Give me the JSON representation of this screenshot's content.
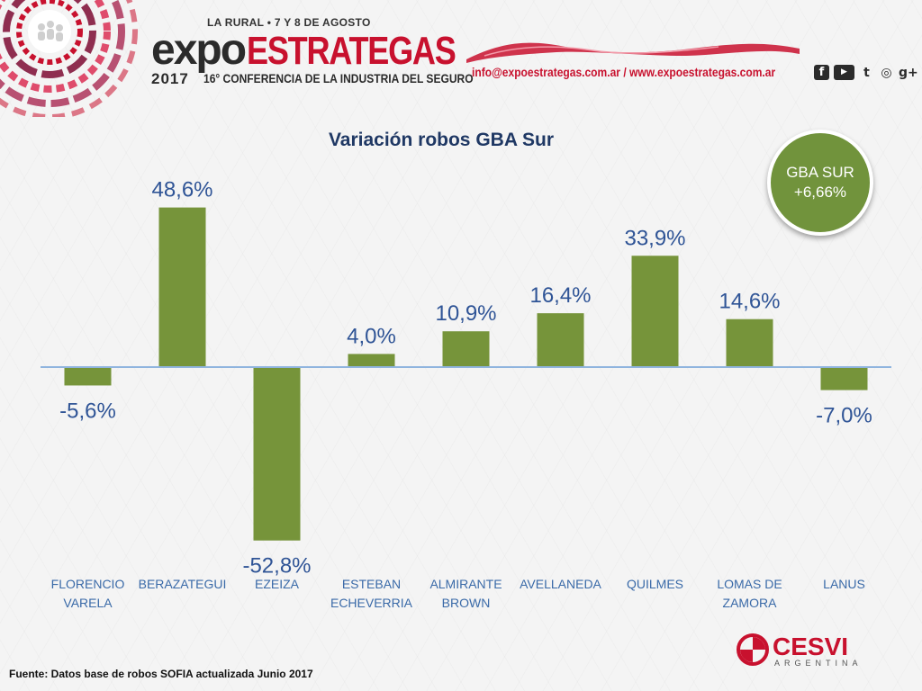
{
  "header": {
    "venue": "LA RURAL • 7 Y 8 DE AGOSTO",
    "brand_part1": "expo",
    "brand_part2": "ESTRATEGAS",
    "year": "2017",
    "conference": "16° CONFERENCIA DE LA INDUSTRIA DEL SEGURO",
    "contact": "info@expoestrategas.com.ar / www.expoestrategas.com.ar",
    "social_icons": [
      "facebook-icon",
      "youtube-icon",
      "twitter-icon",
      "instagram-icon",
      "google-plus-icon"
    ],
    "social_glyphs": [
      "f",
      "▶",
      "t",
      "◎",
      "g+"
    ]
  },
  "badge": {
    "line1": "GBA SUR",
    "line2": "+6,66%"
  },
  "source": "Fuente: Datos base de robos SOFIA actualizada Junio 2017",
  "footer_logo": {
    "name": "CESVI",
    "sub": "ARGENTINA"
  },
  "colors": {
    "bar": "#76943a",
    "axis": "#8fb4de",
    "title": "#1f3864",
    "value_label": "#2f5496",
    "category_label": "#3a6aa8",
    "brand_red": "#c8112e",
    "badge": "#71933c"
  },
  "chart_data": {
    "type": "bar",
    "title": "Variación robos GBA Sur",
    "categories": [
      [
        "FLORENCIO",
        "VARELA"
      ],
      [
        "BERAZATEGUI"
      ],
      [
        "EZEIZA"
      ],
      [
        "ESTEBAN",
        "ECHEVERRIA"
      ],
      [
        "ALMIRANTE",
        "BROWN"
      ],
      [
        "AVELLANEDA"
      ],
      [
        "QUILMES"
      ],
      [
        "LOMAS DE",
        "ZAMORA"
      ],
      [
        "LANUS"
      ]
    ],
    "values": [
      -5.6,
      48.6,
      -52.8,
      4.0,
      10.9,
      16.4,
      33.9,
      14.6,
      -7.0
    ],
    "data_labels": [
      "-5,6%",
      "48,6%",
      "-52,8%",
      "4,0%",
      "10,9%",
      "16,4%",
      "33,9%",
      "14,6%",
      "-7,0%"
    ],
    "ylim": [
      -55,
      50
    ],
    "grid": false,
    "legend": "none",
    "xlabel": "",
    "ylabel": ""
  }
}
